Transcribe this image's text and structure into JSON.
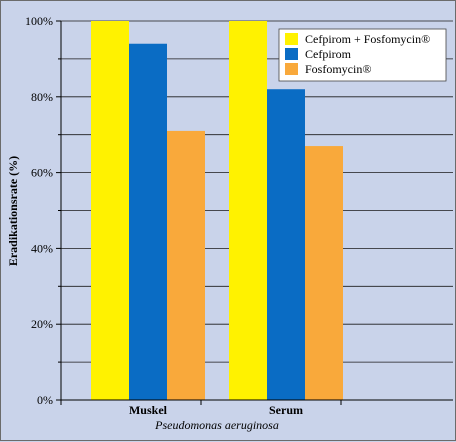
{
  "chart_data": {
    "type": "bar",
    "categories": [
      "Muskel",
      "Serum"
    ],
    "series": [
      {
        "name": "Cefpirom + Fosfomycin®",
        "color": "#fff200",
        "values": [
          100,
          100
        ]
      },
      {
        "name": "Cefpirom",
        "color": "#0a6cc4",
        "values": [
          94,
          82
        ]
      },
      {
        "name": "Fosfomycin®",
        "color": "#f9a93b",
        "values": [
          71,
          67
        ]
      }
    ],
    "xlabel": "Pseudomonas aeruginosa",
    "ylabel": "Eradikationsrate (%)",
    "ylim": [
      0,
      100
    ],
    "yticks": [
      "0%",
      "20%",
      "40%",
      "60%",
      "80%",
      "100%"
    ],
    "ytick_values": [
      0,
      20,
      40,
      60,
      80,
      100
    ],
    "grid": "horizontal",
    "legend_position": "top-right",
    "background_color": "#c9d3ea"
  }
}
